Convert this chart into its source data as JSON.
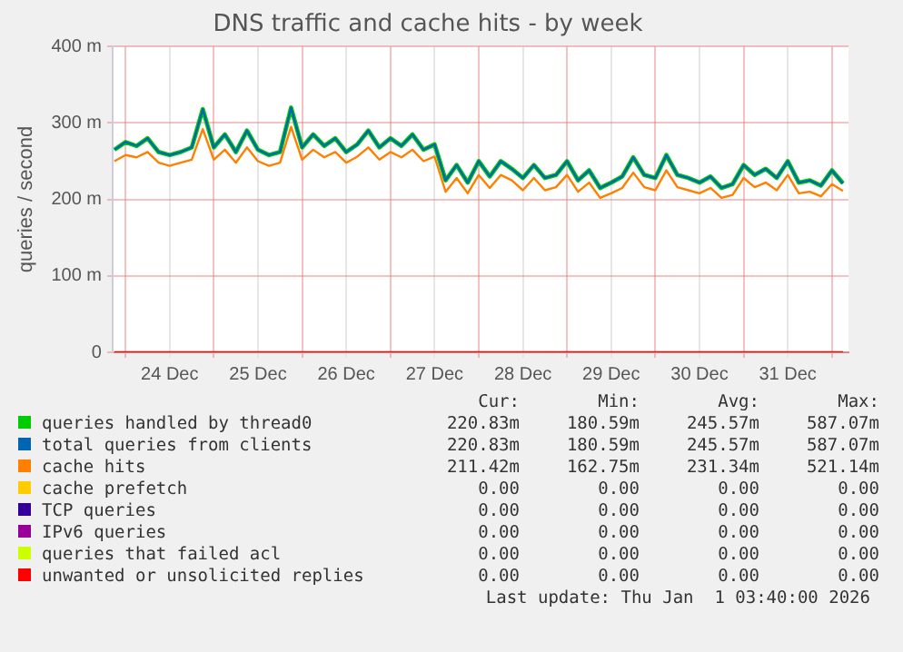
{
  "chart_data": {
    "type": "line",
    "title": "DNS traffic and cache hits - by week",
    "ylabel": "queries / second",
    "x": [
      "2025-12-23T21:00",
      "2025-12-24T00:00",
      "2025-12-24T03:00",
      "2025-12-24T06:00",
      "2025-12-24T09:00",
      "2025-12-24T12:00",
      "2025-12-24T15:00",
      "2025-12-24T18:00",
      "2025-12-24T21:00",
      "2025-12-25T00:00",
      "2025-12-25T03:00",
      "2025-12-25T06:00",
      "2025-12-25T09:00",
      "2025-12-25T12:00",
      "2025-12-25T15:00",
      "2025-12-25T18:00",
      "2025-12-25T21:00",
      "2025-12-26T00:00",
      "2025-12-26T03:00",
      "2025-12-26T06:00",
      "2025-12-26T09:00",
      "2025-12-26T12:00",
      "2025-12-26T15:00",
      "2025-12-26T18:00",
      "2025-12-26T21:00",
      "2025-12-27T00:00",
      "2025-12-27T03:00",
      "2025-12-27T06:00",
      "2025-12-27T09:00",
      "2025-12-27T12:00",
      "2025-12-27T15:00",
      "2025-12-27T18:00",
      "2025-12-27T21:00",
      "2025-12-28T00:00",
      "2025-12-28T03:00",
      "2025-12-28T06:00",
      "2025-12-28T09:00",
      "2025-12-28T12:00",
      "2025-12-28T15:00",
      "2025-12-28T18:00",
      "2025-12-28T21:00",
      "2025-12-29T00:00",
      "2025-12-29T03:00",
      "2025-12-29T06:00",
      "2025-12-29T09:00",
      "2025-12-29T12:00",
      "2025-12-29T15:00",
      "2025-12-29T18:00",
      "2025-12-29T21:00",
      "2025-12-30T00:00",
      "2025-12-30T03:00",
      "2025-12-30T06:00",
      "2025-12-30T09:00",
      "2025-12-30T12:00",
      "2025-12-30T15:00",
      "2025-12-30T18:00",
      "2025-12-30T21:00",
      "2025-12-31T00:00",
      "2025-12-31T03:00",
      "2025-12-31T06:00",
      "2025-12-31T09:00",
      "2025-12-31T12:00",
      "2025-12-31T15:00",
      "2025-12-31T18:00",
      "2025-12-31T21:00",
      "2026-01-01T00:00",
      "2026-01-01T03:00"
    ],
    "series": [
      {
        "name": "queries handled by thread0",
        "color": "#00cc00",
        "values": [
          265,
          275,
          270,
          280,
          262,
          258,
          262,
          268,
          318,
          268,
          285,
          262,
          290,
          265,
          258,
          262,
          320,
          268,
          285,
          270,
          280,
          262,
          272,
          290,
          268,
          280,
          270,
          285,
          265,
          272,
          225,
          245,
          222,
          250,
          230,
          250,
          240,
          228,
          245,
          228,
          232,
          250,
          225,
          238,
          215,
          222,
          230,
          255,
          232,
          228,
          258,
          232,
          228,
          222,
          230,
          215,
          220,
          245,
          232,
          240,
          228,
          250,
          222,
          225,
          218,
          238,
          221
        ]
      },
      {
        "name": "total queries from clients",
        "color": "#0066b3",
        "values": [
          265,
          275,
          270,
          280,
          262,
          258,
          262,
          268,
          318,
          268,
          285,
          262,
          290,
          265,
          258,
          262,
          320,
          268,
          285,
          270,
          280,
          262,
          272,
          290,
          268,
          280,
          270,
          285,
          265,
          272,
          225,
          245,
          222,
          250,
          230,
          250,
          240,
          228,
          245,
          228,
          232,
          250,
          225,
          238,
          215,
          222,
          230,
          255,
          232,
          228,
          258,
          232,
          228,
          222,
          230,
          215,
          220,
          245,
          232,
          240,
          228,
          250,
          222,
          225,
          218,
          238,
          221
        ]
      },
      {
        "name": "cache hits",
        "color": "#ff8000",
        "values": [
          250,
          258,
          255,
          262,
          248,
          244,
          248,
          252,
          292,
          252,
          265,
          248,
          268,
          250,
          244,
          248,
          295,
          252,
          265,
          255,
          262,
          248,
          256,
          268,
          252,
          262,
          255,
          265,
          250,
          256,
          210,
          228,
          208,
          232,
          215,
          232,
          225,
          212,
          228,
          212,
          216,
          232,
          210,
          222,
          202,
          208,
          215,
          235,
          216,
          212,
          238,
          216,
          212,
          208,
          215,
          202,
          206,
          228,
          216,
          222,
          212,
          232,
          208,
          210,
          204,
          220,
          211
        ]
      },
      {
        "name": "cache prefetch",
        "color": "#ffcc00",
        "values": [
          null,
          null,
          null,
          null,
          null,
          null,
          null,
          null,
          null,
          null,
          null,
          null,
          null,
          null,
          null,
          null,
          null,
          null,
          null,
          null,
          null,
          null,
          null,
          null,
          null,
          null,
          null,
          null,
          null,
          null,
          null,
          null,
          null,
          null,
          null,
          null,
          null,
          null,
          null,
          null,
          null,
          null,
          null,
          null,
          null,
          null,
          null,
          null,
          null,
          null,
          null,
          null,
          null,
          null,
          null,
          null,
          null,
          null,
          null,
          null,
          null,
          null,
          null,
          null,
          null,
          null,
          null
        ]
      },
      {
        "name": "TCP queries",
        "color": "#330099",
        "values": [
          null,
          null,
          null,
          null,
          null,
          null,
          null,
          null,
          null,
          null,
          null,
          null,
          null,
          null,
          null,
          null,
          null,
          null,
          null,
          null,
          null,
          null,
          null,
          null,
          null,
          null,
          null,
          null,
          null,
          null,
          null,
          null,
          null,
          null,
          null,
          null,
          null,
          null,
          null,
          null,
          null,
          null,
          null,
          null,
          null,
          null,
          null,
          null,
          null,
          null,
          null,
          null,
          null,
          null,
          null,
          null,
          null,
          null,
          null,
          null,
          null,
          null,
          null,
          null,
          null,
          null,
          null
        ]
      },
      {
        "name": "IPv6 queries",
        "color": "#990099",
        "values": [
          null,
          null,
          null,
          null,
          null,
          null,
          null,
          null,
          null,
          null,
          null,
          null,
          null,
          null,
          null,
          null,
          null,
          null,
          null,
          null,
          null,
          null,
          null,
          null,
          null,
          null,
          null,
          null,
          null,
          null,
          null,
          null,
          null,
          null,
          null,
          null,
          null,
          null,
          null,
          null,
          null,
          null,
          null,
          null,
          null,
          null,
          null,
          null,
          null,
          null,
          null,
          null,
          null,
          null,
          null,
          null,
          null,
          null,
          null,
          null,
          null,
          null,
          null,
          null,
          null,
          null,
          null
        ]
      },
      {
        "name": "queries that failed acl",
        "color": "#ccff00",
        "values": [
          null,
          null,
          null,
          null,
          null,
          null,
          null,
          null,
          null,
          null,
          null,
          null,
          null,
          null,
          null,
          null,
          null,
          null,
          null,
          null,
          null,
          null,
          null,
          null,
          null,
          null,
          null,
          null,
          null,
          null,
          null,
          null,
          null,
          null,
          null,
          null,
          null,
          null,
          null,
          null,
          null,
          null,
          null,
          null,
          null,
          null,
          null,
          null,
          null,
          null,
          null,
          null,
          null,
          null,
          null,
          null,
          null,
          null,
          null,
          null,
          null,
          null,
          null,
          null,
          null,
          null,
          null
        ]
      },
      {
        "name": "unwanted or unsolicited replies",
        "color": "#ff0000",
        "x": [
          "2025-12-23T21:00",
          "2026-01-01T03:00"
        ],
        "values": [
          0,
          0
        ]
      }
    ],
    "xlim": [
      "2025-12-23T20:30",
      "2026-01-01T04:30"
    ],
    "xticks": [
      {
        "value": "2025-12-24T00:00",
        "label": null
      },
      {
        "value": "2025-12-24T12:00",
        "label": "24 Dec"
      },
      {
        "value": "2025-12-25T00:00",
        "label": null
      },
      {
        "value": "2025-12-25T12:00",
        "label": "25 Dec"
      },
      {
        "value": "2025-12-26T00:00",
        "label": null
      },
      {
        "value": "2025-12-26T12:00",
        "label": "26 Dec"
      },
      {
        "value": "2025-12-27T00:00",
        "label": null
      },
      {
        "value": "2025-12-27T12:00",
        "label": "27 Dec"
      },
      {
        "value": "2025-12-28T00:00",
        "label": null
      },
      {
        "value": "2025-12-28T12:00",
        "label": "28 Dec"
      },
      {
        "value": "2025-12-29T00:00",
        "label": null
      },
      {
        "value": "2025-12-29T12:00",
        "label": "29 Dec"
      },
      {
        "value": "2025-12-30T00:00",
        "label": null
      },
      {
        "value": "2025-12-30T12:00",
        "label": "30 Dec"
      },
      {
        "value": "2025-12-31T00:00",
        "label": null
      },
      {
        "value": "2025-12-31T12:00",
        "label": "31 Dec"
      },
      {
        "value": "2026-01-01T00:00",
        "label": null
      }
    ],
    "ylim": [
      0,
      400
    ],
    "yticks": [
      0,
      {
        "value": 100,
        "label": "100 m"
      },
      {
        "value": 200,
        "label": "200 m"
      },
      {
        "value": 300,
        "label": "300 m"
      },
      {
        "value": 400,
        "label": "400 m"
      }
    ],
    "grid": true,
    "legend": "bottom",
    "marker": "none",
    "line_style": "solid",
    "annotations": [
      "Cur:",
      "Min:",
      "Avg:",
      "Max:",
      "220.83m",
      "180.59m",
      "245.57m",
      "587.07m",
      "220.83m",
      "180.59m",
      "245.57m",
      "587.07m",
      "211.42m",
      "162.75m",
      "231.34m",
      "521.14m",
      "0.00",
      "0.00",
      "0.00",
      "0.00",
      "0.00",
      "0.00",
      "0.00",
      "0.00",
      "0.00",
      "0.00",
      "0.00",
      "0.00",
      "0.00",
      "0.00",
      "0.00",
      "0.00",
      "0.00",
      "0.00",
      "0.00",
      "0.00",
      "Last update: Thu Jan  1 03:40:00 2026"
    ]
  }
}
